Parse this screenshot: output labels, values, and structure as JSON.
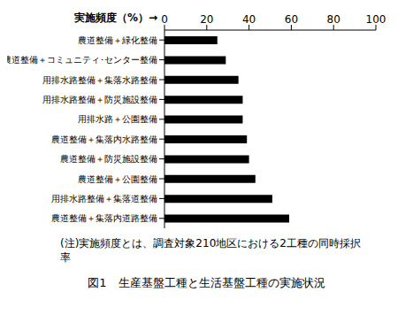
{
  "chart_data": {
    "type": "bar",
    "orientation": "horizontal",
    "title": "図1　生産基盤工種と生活基盤工種の実施状況",
    "x_label": "実施頻度（%）→",
    "annotation": "(注)実施頻度とは、調査対象210地区における2工種の同時採択率",
    "categories": [
      "農道整備＋緑化整備",
      "農道整備＋コミュニティ･センター整備",
      "用排水路整備＋集落水路整備",
      "用排水路整備＋防災施設整備",
      "用排水路＋公園整備",
      "農道整備＋集落内水路整備",
      "農道整備＋防災施設整備",
      "農道整備＋公園整備",
      "用排水路整備＋集落道整備",
      "農道整備＋集落内道路整備"
    ],
    "values": [
      25,
      29,
      35,
      37,
      37,
      39,
      40,
      43,
      51,
      59
    ],
    "color": "#000000",
    "xlim": [
      0,
      100
    ],
    "xticks": [
      0,
      20,
      40,
      60,
      80,
      100
    ],
    "grid": false
  }
}
